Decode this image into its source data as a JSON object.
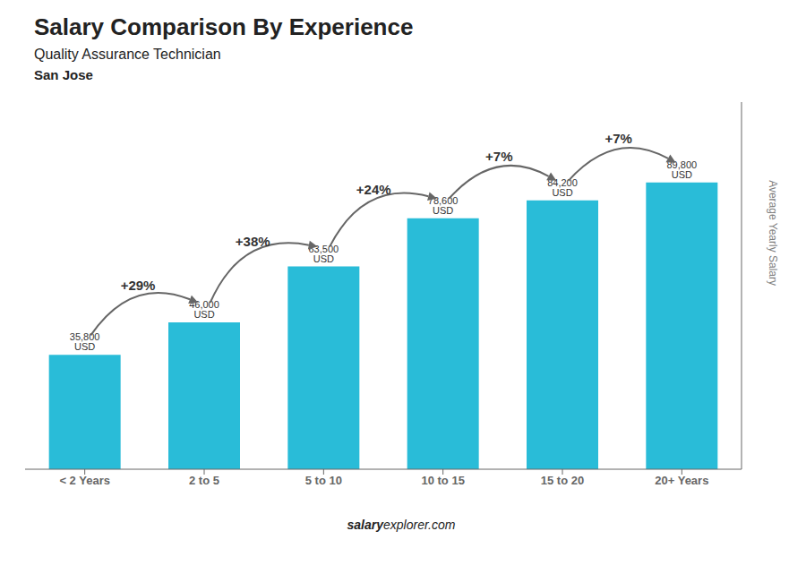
{
  "chart_data": {
    "type": "bar",
    "title": "Salary Comparison By Experience",
    "subtitle": "Quality Assurance Technician",
    "categories": [
      "< 2 Years",
      "2 to 5",
      "5 to 10",
      "10 to 15",
      "15 to 20",
      "20+ Years"
    ],
    "values": [
      35800,
      46000,
      63500,
      78600,
      84200,
      89800
    ],
    "value_labels": [
      "35,800 USD",
      "46,000 USD",
      "63,500 USD",
      "78,600 USD",
      "84,200 USD",
      "89,800 USD"
    ],
    "data_labels": true,
    "color": "#29bcd8",
    "y_label": "Average Yearly Salary",
    "ylim": [
      0,
      115000
    ],
    "tick_labels": "x",
    "grid": false,
    "annotations": {
      "pct_changes": [
        "+29%",
        "+38%",
        "+24%",
        "+7%",
        "+7%"
      ],
      "city": "San Jose",
      "watermark": [
        "salary",
        "explorer.com"
      ]
    }
  }
}
